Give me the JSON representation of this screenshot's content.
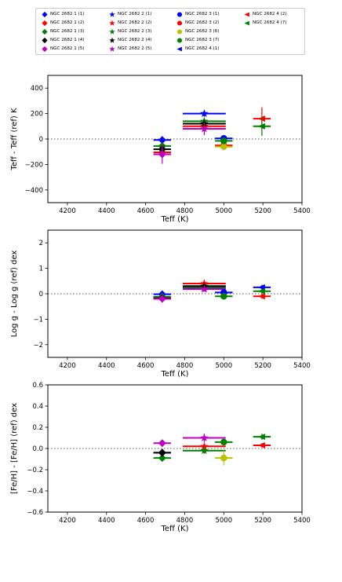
{
  "legend": {
    "placement": "top",
    "entries": [
      {
        "label": "NGC 2682 1 (1)",
        "color": "#0000ff",
        "marker": "D"
      },
      {
        "label": "NGC 2682 1 (2)",
        "color": "#ff0000",
        "marker": "D"
      },
      {
        "label": "NGC 2682 1 (3)",
        "color": "#008000",
        "marker": "D"
      },
      {
        "label": "NGC 2682 1 (4)",
        "color": "#000000",
        "marker": "D"
      },
      {
        "label": "NGC 2682 1 (5)",
        "color": "#bf00bf",
        "marker": "D"
      },
      {
        "label": "NGC 2682 2 (1)",
        "color": "#0000ff",
        "marker": "*"
      },
      {
        "label": "NGC 2682 2 (2)",
        "color": "#ff0000",
        "marker": "*"
      },
      {
        "label": "NGC 2682 2 (3)",
        "color": "#008000",
        "marker": "*"
      },
      {
        "label": "NGC 2682 2 (4)",
        "color": "#000000",
        "marker": "*"
      },
      {
        "label": "NGC 2682 2 (5)",
        "color": "#bf00bf",
        "marker": "*"
      },
      {
        "label": "NGC 2682 3 (1)",
        "color": "#0000ff",
        "marker": "o"
      },
      {
        "label": "NGC 2682 3 (2)",
        "color": "#ff0000",
        "marker": "o"
      },
      {
        "label": "NGC 2682 3 (6)",
        "color": "#bfbf00",
        "marker": "o"
      },
      {
        "label": "NGC 2682 3 (7)",
        "color": "#008000",
        "marker": "o"
      },
      {
        "label": "NGC 2682 4 (1)",
        "color": "#0000ff",
        "marker": "<"
      },
      {
        "label": "NGC 2682 4 (2)",
        "color": "#ff0000",
        "marker": "<"
      },
      {
        "label": "NGC 2682 4 (7)",
        "color": "#008000",
        "marker": "<"
      }
    ]
  },
  "chart_data": [
    {
      "type": "scatter",
      "xlabel": "Teff (K)",
      "ylabel": "Teff - Teff (ref) K",
      "xlim": [
        4100,
        5400
      ],
      "ylim": [
        -500,
        500
      ],
      "xticks": [
        4200,
        4400,
        4600,
        4800,
        5000,
        5200,
        5400
      ],
      "yticks": [
        -400,
        -200,
        0,
        200,
        400
      ],
      "ytick_labels": [
        "−400",
        "−200",
        "0",
        "200",
        "400"
      ],
      "zero_line": true,
      "points": [
        {
          "series": "NGC 2682 1 (1)",
          "x": 4685,
          "y": -8,
          "xerr": 45,
          "yerr": 30
        },
        {
          "series": "NGC 2682 1 (2)",
          "x": 4685,
          "y": -105,
          "xerr": 45,
          "yerr": 35
        },
        {
          "series": "NGC 2682 1 (3)",
          "x": 4685,
          "y": -55,
          "xerr": 45,
          "yerr": 30
        },
        {
          "series": "NGC 2682 1 (4)",
          "x": 4685,
          "y": -80,
          "xerr": 45,
          "yerr": 30
        },
        {
          "series": "NGC 2682 1 (5)",
          "x": 4685,
          "y": -120,
          "xerr": 45,
          "yerr": 75
        },
        {
          "series": "NGC 2682 2 (1)",
          "x": 4900,
          "y": 200,
          "xerr": 110,
          "yerr": 25
        },
        {
          "series": "NGC 2682 2 (2)",
          "x": 4900,
          "y": 100,
          "xerr": 110,
          "yerr": 30
        },
        {
          "series": "NGC 2682 2 (3)",
          "x": 4900,
          "y": 140,
          "xerr": 110,
          "yerr": 25
        },
        {
          "series": "NGC 2682 2 (4)",
          "x": 4900,
          "y": 120,
          "xerr": 110,
          "yerr": 30
        },
        {
          "series": "NGC 2682 2 (5)",
          "x": 4900,
          "y": 80,
          "xerr": 110,
          "yerr": 50
        },
        {
          "series": "NGC 2682 3 (1)",
          "x": 5000,
          "y": 5,
          "xerr": 45,
          "yerr": 25
        },
        {
          "series": "NGC 2682 3 (2)",
          "x": 5000,
          "y": -50,
          "xerr": 45,
          "yerr": 25
        },
        {
          "series": "NGC 2682 3 (6)",
          "x": 5000,
          "y": -60,
          "xerr": 45,
          "yerr": 25
        },
        {
          "series": "NGC 2682 3 (7)",
          "x": 5000,
          "y": -15,
          "xerr": 45,
          "yerr": 25
        },
        {
          "series": "NGC 2682 4 (2)",
          "x": 5195,
          "y": 160,
          "xerr": 45,
          "yerr": 90
        },
        {
          "series": "NGC 2682 4 (7)",
          "x": 5195,
          "y": 100,
          "xerr": 45,
          "yerr": 75
        }
      ]
    },
    {
      "type": "scatter",
      "xlabel": "Teff (K)",
      "ylabel": "Log g - Log g (ref) dex",
      "xlim": [
        4100,
        5400
      ],
      "ylim": [
        -2.5,
        2.5
      ],
      "xticks": [
        4200,
        4400,
        4600,
        4800,
        5000,
        5200,
        5400
      ],
      "yticks": [
        -2,
        -1,
        0,
        1,
        2
      ],
      "ytick_labels": [
        "−2",
        "−1",
        "0",
        "1",
        "2"
      ],
      "zero_line": true,
      "points": [
        {
          "series": "NGC 2682 1 (1)",
          "x": 4685,
          "y": -0.02,
          "xerr": 45,
          "yerr": 0.1
        },
        {
          "series": "NGC 2682 1 (2)",
          "x": 4685,
          "y": -0.15,
          "xerr": 45,
          "yerr": 0.1
        },
        {
          "series": "NGC 2682 1 (3)",
          "x": 4685,
          "y": -0.12,
          "xerr": 45,
          "yerr": 0.1
        },
        {
          "series": "NGC 2682 1 (4)",
          "x": 4685,
          "y": -0.18,
          "xerr": 45,
          "yerr": 0.1
        },
        {
          "series": "NGC 2682 1 (5)",
          "x": 4685,
          "y": -0.2,
          "xerr": 45,
          "yerr": 0.12
        },
        {
          "series": "NGC 2682 2 (1)",
          "x": 4900,
          "y": 0.2,
          "xerr": 110,
          "yerr": 0.1
        },
        {
          "series": "NGC 2682 2 (2)",
          "x": 4900,
          "y": 0.4,
          "xerr": 110,
          "yerr": 0.15
        },
        {
          "series": "NGC 2682 2 (3)",
          "x": 4900,
          "y": 0.25,
          "xerr": 110,
          "yerr": 0.1
        },
        {
          "series": "NGC 2682 2 (4)",
          "x": 4900,
          "y": 0.3,
          "xerr": 110,
          "yerr": 0.1
        },
        {
          "series": "NGC 2682 2 (5)",
          "x": 4900,
          "y": 0.18,
          "xerr": 110,
          "yerr": 0.1
        },
        {
          "series": "NGC 2682 3 (1)",
          "x": 5000,
          "y": 0.05,
          "xerr": 45,
          "yerr": 0.08
        },
        {
          "series": "NGC 2682 3 (7)",
          "x": 5000,
          "y": -0.1,
          "xerr": 45,
          "yerr": 0.08
        },
        {
          "series": "NGC 2682 4 (1)",
          "x": 5195,
          "y": 0.25,
          "xerr": 45,
          "yerr": 0.1
        },
        {
          "series": "NGC 2682 4 (2)",
          "x": 5195,
          "y": -0.1,
          "xerr": 45,
          "yerr": 0.1
        },
        {
          "series": "NGC 2682 4 (7)",
          "x": 5195,
          "y": 0.1,
          "xerr": 45,
          "yerr": 0.1
        }
      ]
    },
    {
      "type": "scatter",
      "xlabel": "Teff (K)",
      "ylabel": "[Fe/H] - [Fe/H] (ref) dex",
      "xlim": [
        4100,
        5400
      ],
      "ylim": [
        -0.6,
        0.6
      ],
      "xticks": [
        4200,
        4400,
        4600,
        4800,
        5000,
        5200,
        5400
      ],
      "yticks": [
        -0.6,
        -0.4,
        -0.2,
        0.0,
        0.2,
        0.4,
        0.6
      ],
      "ytick_labels": [
        "−0.6",
        "−0.4",
        "−0.2",
        "0.0",
        "0.2",
        "0.4",
        "0.6"
      ],
      "zero_line": true,
      "points": [
        {
          "series": "NGC 2682 1 (1)",
          "x": 4685,
          "y": -0.04,
          "xerr": 45,
          "yerr": 0.02
        },
        {
          "series": "NGC 2682 1 (3)",
          "x": 4685,
          "y": -0.09,
          "xerr": 45,
          "yerr": 0.02
        },
        {
          "series": "NGC 2682 1 (4)",
          "x": 4685,
          "y": -0.04,
          "xerr": 45,
          "yerr": 0.02
        },
        {
          "series": "NGC 2682 1 (5)",
          "x": 4685,
          "y": 0.05,
          "xerr": 45,
          "yerr": 0.02
        },
        {
          "series": "NGC 2682 2 (2)",
          "x": 4900,
          "y": 0.02,
          "xerr": 110,
          "yerr": 0.02
        },
        {
          "series": "NGC 2682 2 (3)",
          "x": 4900,
          "y": -0.02,
          "xerr": 110,
          "yerr": 0.03
        },
        {
          "series": "NGC 2682 2 (5)",
          "x": 4900,
          "y": 0.1,
          "xerr": 110,
          "yerr": 0.04
        },
        {
          "series": "NGC 2682 3 (6)",
          "x": 5000,
          "y": -0.09,
          "xerr": 45,
          "yerr": 0.07
        },
        {
          "series": "NGC 2682 3 (7)",
          "x": 5000,
          "y": 0.06,
          "xerr": 45,
          "yerr": 0.02
        },
        {
          "series": "NGC 2682 4 (2)",
          "x": 5195,
          "y": 0.03,
          "xerr": 45,
          "yerr": 0.02
        },
        {
          "series": "NGC 2682 4 (7)",
          "x": 5195,
          "y": 0.11,
          "xerr": 45,
          "yerr": 0.03
        }
      ]
    }
  ]
}
